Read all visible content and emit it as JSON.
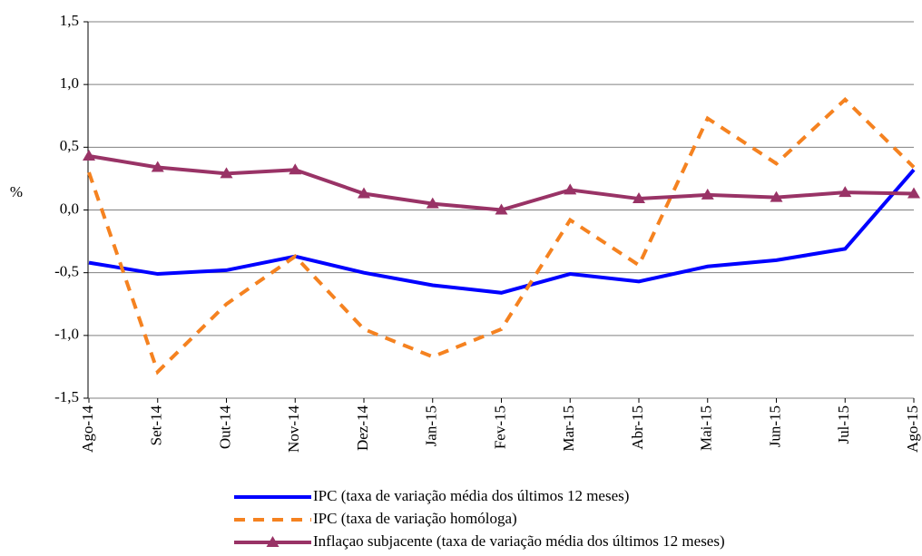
{
  "chart_data": {
    "type": "line",
    "ylabel": "%",
    "categories": [
      "Ago-14",
      "Set-14",
      "Out-14",
      "Nov-14",
      "Dez-14",
      "Jan-15",
      "Fev-15",
      "Mar-15",
      "Abr-15",
      "Mai-15",
      "Jun-15",
      "Jul-15",
      "Ago-15"
    ],
    "series": [
      {
        "name": "IPC (taxa de variação média dos últimos 12 meses)",
        "color": "#0000ff",
        "line_style": "solid",
        "marker": "none",
        "values": [
          -0.42,
          -0.51,
          -0.48,
          -0.37,
          -0.5,
          -0.6,
          -0.66,
          -0.51,
          -0.57,
          -0.45,
          -0.4,
          -0.31,
          0.32
        ]
      },
      {
        "name": "IPC (taxa de variação homóloga)",
        "color": "#f58220",
        "line_style": "dashed",
        "marker": "none",
        "values": [
          0.3,
          -1.29,
          -0.75,
          -0.37,
          -0.95,
          -1.17,
          -0.95,
          -0.08,
          -0.44,
          0.73,
          0.37,
          0.88,
          0.34
        ]
      },
      {
        "name": "Inflaçao subjacente (taxa de variação média dos últimos 12 meses)",
        "color": "#993366",
        "line_style": "solid",
        "marker": "triangle",
        "values": [
          0.43,
          0.34,
          0.29,
          0.32,
          0.13,
          0.05,
          0.0,
          0.16,
          0.09,
          0.12,
          0.1,
          0.14,
          0.13
        ]
      }
    ],
    "ylim": [
      -1.5,
      1.5
    ],
    "yticks": [
      {
        "value": -1.5,
        "label": "-1,5"
      },
      {
        "value": -1.0,
        "label": "-1,0"
      },
      {
        "value": -0.5,
        "label": "-0,5"
      },
      {
        "value": 0,
        "label": "0,0"
      },
      {
        "value": 0.5,
        "label": "0,5"
      },
      {
        "value": 1.0,
        "label": "1,0"
      },
      {
        "value": 1.5,
        "label": "1,5"
      }
    ],
    "grid": true
  }
}
